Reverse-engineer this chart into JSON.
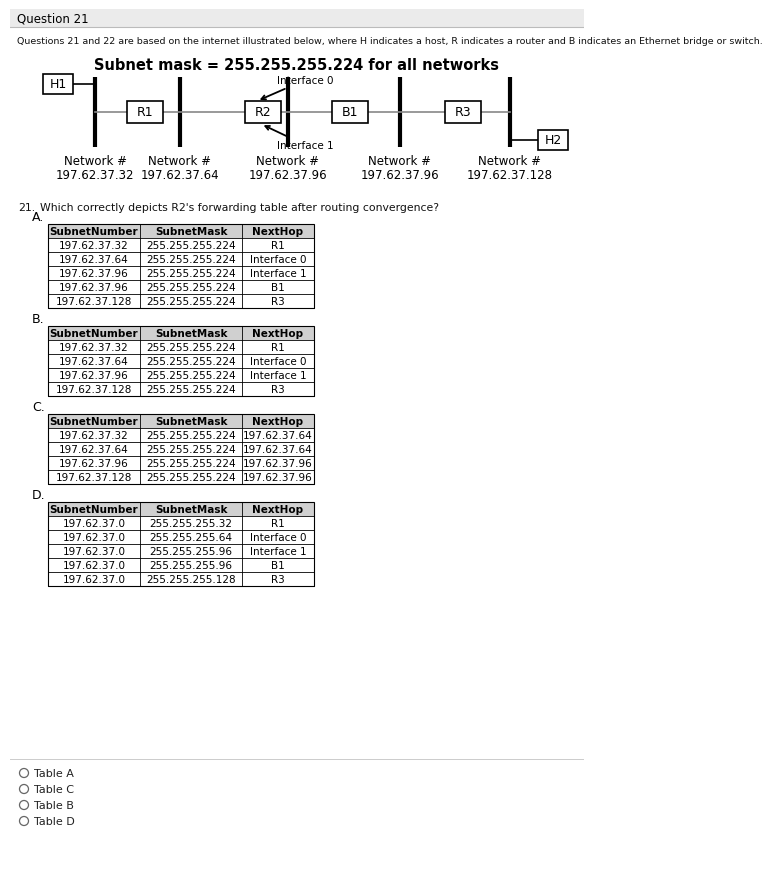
{
  "title": "Question 21",
  "subtitle": "Questions 21 and 22 are based on the internet illustrated below, where H indicates a host, R indicates a router and B indicates an Ethernet bridge or switch.",
  "subnet_title": "Subnet mask = 255.255.255.224 for all networks",
  "question_num": "21.",
  "question_text": "Which correctly depicts R2's forwarding table after routing convergence?",
  "network_labels": [
    [
      "Network #",
      "197.62.37.32"
    ],
    [
      "Network #",
      "197.62.37.64"
    ],
    [
      "Network #",
      "197.62.37.96"
    ],
    [
      "Network #",
      "197.62.37.96"
    ],
    [
      "Network #",
      "197.62.37.128"
    ]
  ],
  "interface0_label": "Interface 0",
  "interface1_label": "Interface 1",
  "options": [
    "A.",
    "B.",
    "C.",
    "D."
  ],
  "table_A": {
    "header": [
      "SubnetNumber",
      "SubnetMask",
      "NextHop"
    ],
    "rows": [
      [
        "197.62.37.32",
        "255.255.255.224",
        "R1"
      ],
      [
        "197.62.37.64",
        "255.255.255.224",
        "Interface 0"
      ],
      [
        "197.62.37.96",
        "255.255.255.224",
        "Interface 1"
      ],
      [
        "197.62.37.96",
        "255.255.255.224",
        "B1"
      ],
      [
        "197.62.37.128",
        "255.255.255.224",
        "R3"
      ]
    ]
  },
  "table_B": {
    "header": [
      "SubnetNumber",
      "SubnetMask",
      "NextHop"
    ],
    "rows": [
      [
        "197.62.37.32",
        "255.255.255.224",
        "R1"
      ],
      [
        "197.62.37.64",
        "255.255.255.224",
        "Interface 0"
      ],
      [
        "197.62.37.96",
        "255.255.255.224",
        "Interface 1"
      ],
      [
        "197.62.37.128",
        "255.255.255.224",
        "R3"
      ]
    ]
  },
  "table_C": {
    "header": [
      "SubnetNumber",
      "SubnetMask",
      "NextHop"
    ],
    "rows": [
      [
        "197.62.37.32",
        "255.255.255.224",
        "197.62.37.64"
      ],
      [
        "197.62.37.64",
        "255.255.255.224",
        "197.62.37.64"
      ],
      [
        "197.62.37.96",
        "255.255.255.224",
        "197.62.37.96"
      ],
      [
        "197.62.37.128",
        "255.255.255.224",
        "197.62.37.96"
      ]
    ]
  },
  "table_D": {
    "header": [
      "SubnetNumber",
      "SubnetMask",
      "NextHop"
    ],
    "rows": [
      [
        "197.62.37.0",
        "255.255.255.32",
        "R1"
      ],
      [
        "197.62.37.0",
        "255.255.255.64",
        "Interface 0"
      ],
      [
        "197.62.37.0",
        "255.255.255.96",
        "Interface 1"
      ],
      [
        "197.62.37.0",
        "255.255.255.96",
        "B1"
      ],
      [
        "197.62.37.0",
        "255.255.255.128",
        "R3"
      ]
    ]
  },
  "radio_options": [
    "Table A",
    "Table C",
    "Table B",
    "Table D"
  ],
  "bg_color": "#ffffff",
  "title_bg": "#ebebeb"
}
